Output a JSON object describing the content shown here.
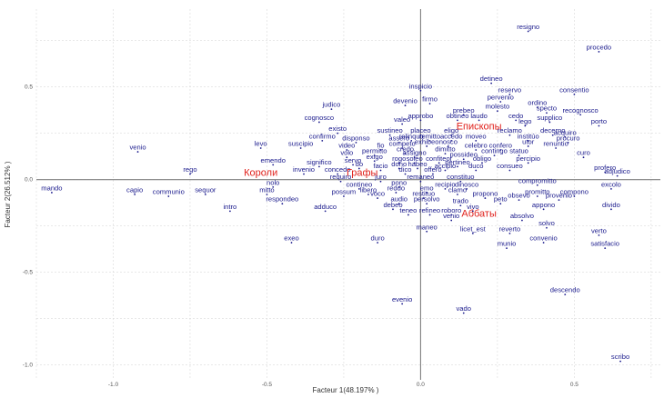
{
  "chart_data": {
    "type": "scatter",
    "xlabel": "Facteur 1(48.197% )",
    "ylabel": "Facteur 2(26.512% )",
    "xlim": [
      -1.25,
      0.78
    ],
    "ylim": [
      -1.08,
      0.92
    ],
    "x_ticks": [
      -1.0,
      -0.5,
      0.0,
      0.5
    ],
    "y_ticks": [
      0.5,
      0.0,
      -0.5,
      -1.0
    ],
    "x_tick_labels": [
      "-1.0",
      "-0.5",
      "0.0",
      "0.5"
    ],
    "y_tick_labels": [
      "0.5",
      "0.0",
      "-0.5",
      "-1.0"
    ],
    "grid": true,
    "legend": "none",
    "colors": {
      "words": "#1a1a8c",
      "groups": "#e0201b",
      "axes": "#7f7f7f",
      "grid": "#d9d9d9"
    },
    "groups": [
      {
        "label": "Епископы",
        "x": 0.19,
        "y": 0.27
      },
      {
        "label": "Короли",
        "x": -0.52,
        "y": 0.02
      },
      {
        "label": "Графы",
        "x": -0.19,
        "y": 0.02
      },
      {
        "label": "Аббаты",
        "x": 0.19,
        "y": -0.2
      }
    ],
    "points": [
      {
        "label": "resigno",
        "x": 0.35,
        "y": 0.8
      },
      {
        "label": "procedo",
        "x": 0.58,
        "y": 0.69
      },
      {
        "label": "inspicio",
        "x": 0,
        "y": 0.48
      },
      {
        "label": "detineo",
        "x": 0.23,
        "y": 0.52
      },
      {
        "label": "reservo",
        "x": 0.29,
        "y": 0.46
      },
      {
        "label": "consentio",
        "x": 0.5,
        "y": 0.46
      },
      {
        "label": "pervenio",
        "x": 0.26,
        "y": 0.42
      },
      {
        "label": "devenio",
        "x": -0.05,
        "y": 0.4
      },
      {
        "label": "firmo",
        "x": 0.03,
        "y": 0.41
      },
      {
        "label": "judico",
        "x": -0.29,
        "y": 0.38
      },
      {
        "label": "ordino",
        "x": 0.38,
        "y": 0.39
      },
      {
        "label": "prebeo",
        "x": 0.14,
        "y": 0.35
      },
      {
        "label": "molesto",
        "x": 0.25,
        "y": 0.37
      },
      {
        "label": "specto",
        "x": 0.41,
        "y": 0.36
      },
      {
        "label": "recognosco",
        "x": 0.52,
        "y": 0.35
      },
      {
        "label": "approbo",
        "x": 0,
        "y": 0.32
      },
      {
        "label": "laudo",
        "x": 0.19,
        "y": 0.32
      },
      {
        "label": "cognosco",
        "x": -0.33,
        "y": 0.31
      },
      {
        "label": "valeo",
        "x": -0.06,
        "y": 0.3
      },
      {
        "label": "obtineo",
        "x": 0.12,
        "y": 0.32
      },
      {
        "label": "cedo",
        "x": 0.31,
        "y": 0.32
      },
      {
        "label": "supplico",
        "x": 0.42,
        "y": 0.31
      },
      {
        "label": "lego",
        "x": 0.34,
        "y": 0.29
      },
      {
        "label": "porto",
        "x": 0.58,
        "y": 0.29
      },
      {
        "label": "existo",
        "x": -0.27,
        "y": 0.25
      },
      {
        "label": "sustineo",
        "x": -0.1,
        "y": 0.24
      },
      {
        "label": "placeo",
        "x": 0,
        "y": 0.24
      },
      {
        "label": "eligo",
        "x": 0.1,
        "y": 0.24
      },
      {
        "label": "reclamo",
        "x": 0.29,
        "y": 0.24
      },
      {
        "label": "decerno",
        "x": 0.43,
        "y": 0.24
      },
      {
        "label": "acquiro",
        "x": 0.47,
        "y": 0.23
      },
      {
        "label": "confirmo",
        "x": -0.32,
        "y": 0.21
      },
      {
        "label": "disponso",
        "x": -0.21,
        "y": 0.2
      },
      {
        "label": "assero",
        "x": -0.07,
        "y": 0.2
      },
      {
        "label": "relinquo",
        "x": -0.03,
        "y": 0.21
      },
      {
        "label": "remitto",
        "x": 0.03,
        "y": 0.21
      },
      {
        "label": "accedo",
        "x": 0.1,
        "y": 0.21
      },
      {
        "label": "moveo",
        "x": 0.18,
        "y": 0.21
      },
      {
        "label": "institúo",
        "x": 0.35,
        "y": 0.21
      },
      {
        "label": "procuro",
        "x": 0.48,
        "y": 0.2
      },
      {
        "label": "levo",
        "x": -0.52,
        "y": 0.17
      },
      {
        "label": "suscipio",
        "x": -0.39,
        "y": 0.17
      },
      {
        "label": "video",
        "x": -0.24,
        "y": 0.16
      },
      {
        "label": "fio",
        "x": -0.13,
        "y": 0.16
      },
      {
        "label": "competo",
        "x": -0.06,
        "y": 0.17
      },
      {
        "label": "exhibeo",
        "x": 0.02,
        "y": 0.18
      },
      {
        "label": "nosco",
        "x": 0.09,
        "y": 0.18
      },
      {
        "label": "celebro",
        "x": 0.18,
        "y": 0.16
      },
      {
        "label": "confero",
        "x": 0.26,
        "y": 0.16
      },
      {
        "label": "utor",
        "x": 0.35,
        "y": 0.18
      },
      {
        "label": "renuntio",
        "x": 0.44,
        "y": 0.17
      },
      {
        "label": "venio",
        "x": -0.92,
        "y": 0.15
      },
      {
        "label": "volo",
        "x": -0.24,
        "y": 0.12
      },
      {
        "label": "permitto",
        "x": -0.15,
        "y": 0.13
      },
      {
        "label": "credo",
        "x": -0.05,
        "y": 0.14
      },
      {
        "label": "assigno",
        "x": -0.02,
        "y": 0.12
      },
      {
        "label": "dimitto",
        "x": 0.08,
        "y": 0.14
      },
      {
        "label": "possideo",
        "x": 0.14,
        "y": 0.11
      },
      {
        "label": "contingo",
        "x": 0.24,
        "y": 0.13
      },
      {
        "label": "statuo",
        "x": 0.32,
        "y": 0.13
      },
      {
        "label": "curo",
        "x": 0.53,
        "y": 0.12
      },
      {
        "label": "exigo",
        "x": -0.15,
        "y": 0.1
      },
      {
        "label": "rogo",
        "x": -0.07,
        "y": 0.09
      },
      {
        "label": "soleo",
        "x": -0.02,
        "y": 0.09
      },
      {
        "label": "confiteor",
        "x": 0.06,
        "y": 0.09
      },
      {
        "label": "obligo",
        "x": 0.2,
        "y": 0.09
      },
      {
        "label": "percipio",
        "x": 0.35,
        "y": 0.09
      },
      {
        "label": "emendo",
        "x": -0.48,
        "y": 0.08
      },
      {
        "label": "significo",
        "x": -0.33,
        "y": 0.07
      },
      {
        "label": "servo",
        "x": -0.22,
        "y": 0.08
      },
      {
        "label": "do",
        "x": -0.2,
        "y": 0.06
      },
      {
        "label": "facio",
        "x": -0.13,
        "y": 0.05
      },
      {
        "label": "dono",
        "x": -0.07,
        "y": 0.06
      },
      {
        "label": "habeo",
        "x": -0.01,
        "y": 0.06
      },
      {
        "label": "accipio",
        "x": 0.08,
        "y": 0.05
      },
      {
        "label": "duco",
        "x": 0.18,
        "y": 0.05
      },
      {
        "label": "pertineo",
        "x": 0.12,
        "y": 0.07
      },
      {
        "label": "consueo",
        "x": 0.29,
        "y": 0.05
      },
      {
        "label": "profero",
        "x": 0.6,
        "y": 0.04
      },
      {
        "label": "rego",
        "x": -0.75,
        "y": 0.03
      },
      {
        "label": "invenio",
        "x": -0.38,
        "y": 0.03
      },
      {
        "label": "concedo",
        "x": -0.27,
        "y": 0.03
      },
      {
        "label": "dico",
        "x": -0.05,
        "y": 0.03
      },
      {
        "label": "offero",
        "x": 0.04,
        "y": 0.03
      },
      {
        "label": "adjudico",
        "x": 0.64,
        "y": 0.02
      },
      {
        "label": "requiro",
        "x": -0.26,
        "y": -0.01
      },
      {
        "label": "juro",
        "x": -0.13,
        "y": -0.01
      },
      {
        "label": "remaneo",
        "x": 0,
        "y": -0.01
      },
      {
        "label": "constituo",
        "x": 0.13,
        "y": -0.01
      },
      {
        "label": "mitto",
        "x": -0.5,
        "y": -0.08
      },
      {
        "label": "nolo",
        "x": -0.48,
        "y": -0.04
      },
      {
        "label": "contineo",
        "x": -0.2,
        "y": -0.05
      },
      {
        "label": "pono",
        "x": -0.07,
        "y": -0.04
      },
      {
        "label": "recipio",
        "x": 0.08,
        "y": -0.05
      },
      {
        "label": "dinosco",
        "x": 0.15,
        "y": -0.05
      },
      {
        "label": "compromitto",
        "x": 0.38,
        "y": -0.03
      },
      {
        "label": "excolo",
        "x": 0.62,
        "y": -0.05
      },
      {
        "label": "mando",
        "x": -1.2,
        "y": -0.07
      },
      {
        "label": "capio",
        "x": -0.93,
        "y": -0.08
      },
      {
        "label": "communio",
        "x": -0.82,
        "y": -0.09
      },
      {
        "label": "sequor",
        "x": -0.7,
        "y": -0.08
      },
      {
        "label": "possum",
        "x": -0.25,
        "y": -0.09
      },
      {
        "label": "libero",
        "x": -0.17,
        "y": -0.08
      },
      {
        "label": "reddo",
        "x": -0.08,
        "y": -0.07
      },
      {
        "label": "emo",
        "x": 0.02,
        "y": -0.07
      },
      {
        "label": "clamo",
        "x": 0.12,
        "y": -0.08
      },
      {
        "label": "promitto",
        "x": 0.38,
        "y": -0.09
      },
      {
        "label": "compono",
        "x": 0.5,
        "y": -0.09
      },
      {
        "label": "voco",
        "x": -0.14,
        "y": -0.1
      },
      {
        "label": "restituo",
        "x": 0.01,
        "y": -0.1
      },
      {
        "label": "propono",
        "x": 0.21,
        "y": -0.1
      },
      {
        "label": "obsevo",
        "x": 0.32,
        "y": -0.11
      },
      {
        "label": "provenio",
        "x": 0.45,
        "y": -0.11
      },
      {
        "label": "respondeo",
        "x": -0.45,
        "y": -0.13
      },
      {
        "label": "audio",
        "x": -0.07,
        "y": -0.13
      },
      {
        "label": "persolvo",
        "x": 0.02,
        "y": -0.13
      },
      {
        "label": "trado",
        "x": 0.13,
        "y": -0.14
      },
      {
        "label": "peto",
        "x": 0.26,
        "y": -0.13
      },
      {
        "label": "intro",
        "x": -0.62,
        "y": -0.17
      },
      {
        "label": "adduco",
        "x": -0.31,
        "y": -0.17
      },
      {
        "label": "debeo",
        "x": -0.09,
        "y": -0.16
      },
      {
        "label": "vivo",
        "x": 0.17,
        "y": -0.17
      },
      {
        "label": "appono",
        "x": 0.4,
        "y": -0.16
      },
      {
        "label": "divido",
        "x": 0.62,
        "y": -0.16
      },
      {
        "label": "teneo",
        "x": -0.04,
        "y": -0.19
      },
      {
        "label": "refineo",
        "x": 0.03,
        "y": -0.19
      },
      {
        "label": "roboro",
        "x": 0.1,
        "y": -0.19
      },
      {
        "label": "venio",
        "x": 0.1,
        "y": -0.22
      },
      {
        "label": "absolvo",
        "x": 0.33,
        "y": -0.22
      },
      {
        "label": "solvo",
        "x": 0.41,
        "y": -0.26
      },
      {
        "label": "maneo",
        "x": 0.02,
        "y": -0.28
      },
      {
        "label": "licet_est",
        "x": 0.17,
        "y": -0.29
      },
      {
        "label": "reverto",
        "x": 0.29,
        "y": -0.29
      },
      {
        "label": "verto",
        "x": 0.58,
        "y": -0.3
      },
      {
        "label": "exeo",
        "x": -0.42,
        "y": -0.34
      },
      {
        "label": "duro",
        "x": -0.14,
        "y": -0.34
      },
      {
        "label": "convenio",
        "x": 0.4,
        "y": -0.34
      },
      {
        "label": "munio",
        "x": 0.28,
        "y": -0.37
      },
      {
        "label": "satisfacio",
        "x": 0.6,
        "y": -0.37
      },
      {
        "label": "descendo",
        "x": 0.47,
        "y": -0.62
      },
      {
        "label": "evenio",
        "x": -0.06,
        "y": -0.67
      },
      {
        "label": "vado",
        "x": 0.14,
        "y": -0.72
      },
      {
        "label": "scribo",
        "x": 0.65,
        "y": -0.98
      }
    ]
  }
}
